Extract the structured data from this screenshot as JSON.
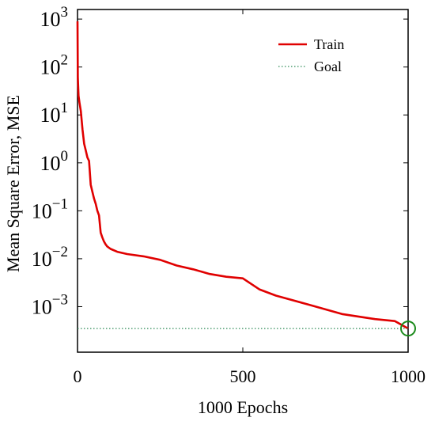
{
  "chart_data": {
    "type": "line",
    "xlabel": "1000 Epochs",
    "ylabel": "Mean Square Error, MSE",
    "xlim": [
      0,
      1000
    ],
    "ylim": [
      0.0001,
      1000
    ],
    "yscale": "log",
    "grid": false,
    "legend_position": "top-right",
    "x_ticks": [
      {
        "value": 0,
        "label": "0"
      },
      {
        "value": 500,
        "label": "500"
      },
      {
        "value": 1000,
        "label": "1000"
      }
    ],
    "y_ticks": [
      {
        "value": 1000,
        "base": "10",
        "exp": "3"
      },
      {
        "value": 100,
        "base": "10",
        "exp": "2"
      },
      {
        "value": 10,
        "base": "10",
        "exp": "1"
      },
      {
        "value": 1,
        "base": "10",
        "exp": "0"
      },
      {
        "value": 0.1,
        "base": "10",
        "exp": "−1"
      },
      {
        "value": 0.01,
        "base": "10",
        "exp": "−2"
      },
      {
        "value": 0.001,
        "base": "10",
        "exp": "−3"
      }
    ],
    "series": [
      {
        "name": "Train",
        "color": "#e00000",
        "style": "solid",
        "x": [
          0,
          1,
          3,
          6,
          10,
          15,
          20,
          25,
          30,
          35,
          40,
          45,
          50,
          55,
          60,
          65,
          70,
          75,
          80,
          85,
          90,
          100,
          120,
          150,
          200,
          250,
          300,
          350,
          400,
          450,
          500,
          550,
          600,
          700,
          800,
          900,
          960,
          1000
        ],
        "y": [
          900,
          60,
          25,
          18,
          12,
          5,
          2.5,
          1.8,
          1.3,
          1.1,
          0.35,
          0.25,
          0.18,
          0.14,
          0.1,
          0.08,
          0.035,
          0.028,
          0.023,
          0.02,
          0.018,
          0.016,
          0.014,
          0.0125,
          0.0112,
          0.0095,
          0.0072,
          0.006,
          0.0048,
          0.0042,
          0.0039,
          0.0023,
          0.0017,
          0.0011,
          0.0007,
          0.00055,
          0.0005,
          0.00035
        ]
      },
      {
        "name": "Goal",
        "color": "#2e8b57",
        "style": "dotted",
        "x": [
          0,
          1000
        ],
        "y": [
          0.00035,
          0.00035
        ]
      }
    ],
    "markers": [
      {
        "x": 1000,
        "y": 0.00035,
        "shape": "circle",
        "color": "#1a8a1a"
      }
    ]
  }
}
